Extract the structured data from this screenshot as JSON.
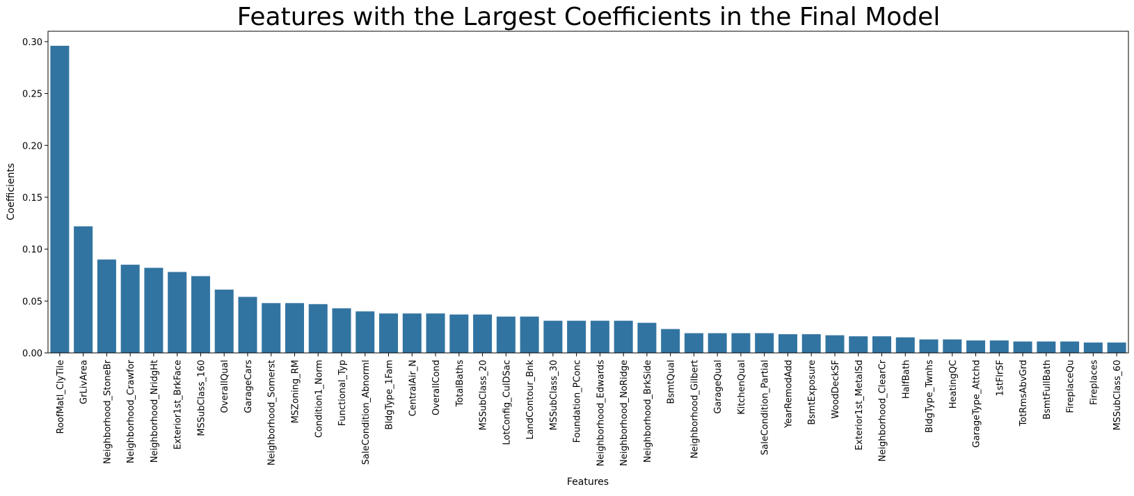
{
  "chart_data": {
    "type": "bar",
    "title": "Features with the Largest Coefficients in the Final Model",
    "xlabel": "Features",
    "ylabel": "Coefficients",
    "ylim": [
      0,
      0.31
    ],
    "yticks": [
      0.0,
      0.05,
      0.1,
      0.15,
      0.2,
      0.25,
      0.3
    ],
    "ytick_labels": [
      "0.00",
      "0.05",
      "0.10",
      "0.15",
      "0.20",
      "0.25",
      "0.30"
    ],
    "grid": false,
    "bar_color": "#3274a1",
    "categories": [
      "RoofMatl_ClyTile",
      "GrLivArea",
      "Neighborhood_StoneBr",
      "Neighborhood_Crawfor",
      "Neighborhood_NridgHt",
      "Exterior1st_BrkFace",
      "MSSubClass_160",
      "OverallQual",
      "GarageCars",
      "Neighborhood_Somerst",
      "MSZoning_RM",
      "Condition1_Norm",
      "Functional_Typ",
      "SaleCondition_Abnorml",
      "BldgType_1Fam",
      "CentralAir_N",
      "OverallCond",
      "TotalBaths",
      "MSSubClass_20",
      "LotConfig_CulDSac",
      "LandContour_Bnk",
      "MSSubClass_30",
      "Foundation_PConc",
      "Neighborhood_Edwards",
      "Neighborhood_NoRidge",
      "Neighborhood_BrkSide",
      "BsmtQual",
      "Neighborhood_Gilbert",
      "GarageQual",
      "KitchenQual",
      "SaleCondition_Partial",
      "YearRemodAdd",
      "BsmtExposure",
      "WoodDeckSF",
      "Exterior1st_MetalSd",
      "Neighborhood_ClearCr",
      "HalfBath",
      "BldgType_Twnhs",
      "HeatingQC",
      "GarageType_Attchd",
      "1stFlrSF",
      "TotRmsAbvGrd",
      "BsmtFullBath",
      "FireplaceQu",
      "Fireplaces",
      "MSSubClass_60"
    ],
    "values": [
      0.296,
      0.122,
      0.09,
      0.085,
      0.082,
      0.078,
      0.074,
      0.061,
      0.054,
      0.048,
      0.048,
      0.047,
      0.043,
      0.04,
      0.038,
      0.038,
      0.038,
      0.037,
      0.037,
      0.035,
      0.035,
      0.031,
      0.031,
      0.031,
      0.031,
      0.029,
      0.023,
      0.019,
      0.019,
      0.019,
      0.019,
      0.018,
      0.018,
      0.017,
      0.016,
      0.016,
      0.015,
      0.013,
      0.013,
      0.012,
      0.012,
      0.011,
      0.011,
      0.011,
      0.01,
      0.01
    ]
  }
}
